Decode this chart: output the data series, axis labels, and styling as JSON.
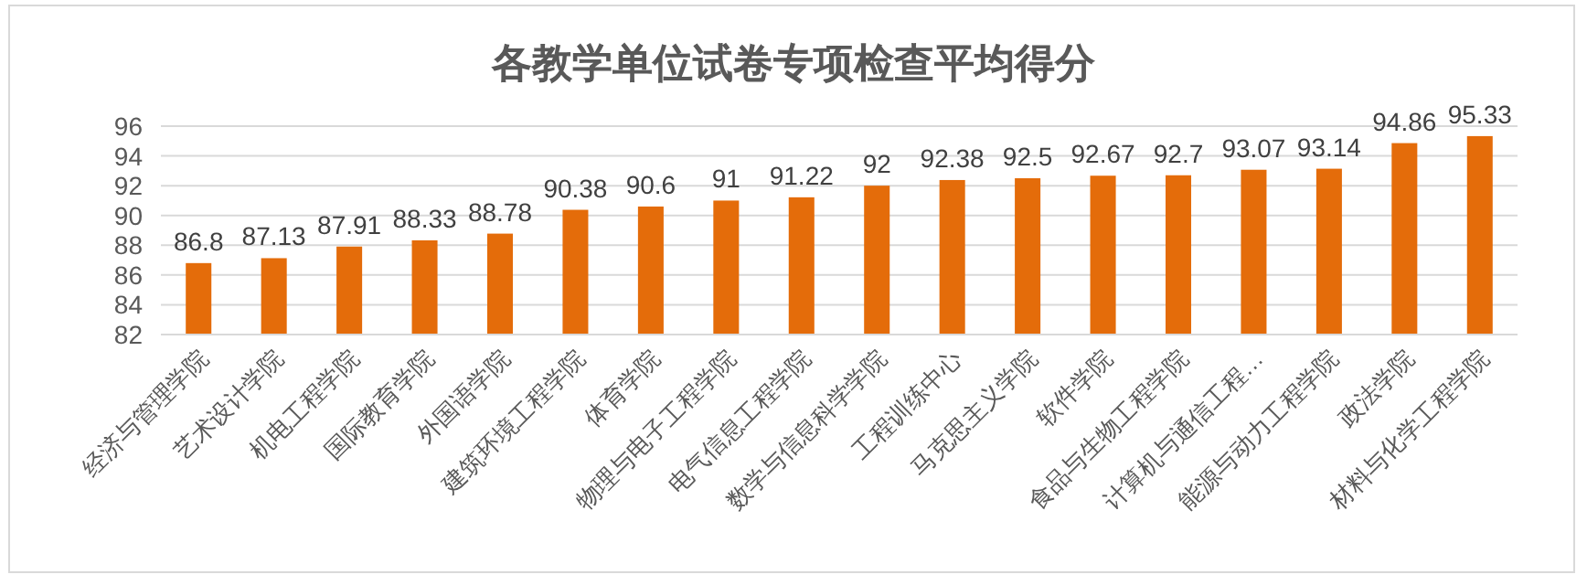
{
  "chart_data": {
    "type": "bar",
    "title": "各教学单位试卷专项检查平均得分",
    "categories": [
      "经济与管理学院",
      "艺术设计学院",
      "机电工程学院",
      "国际教育学院",
      "外国语学院",
      "建筑环境工程学院",
      "体育学院",
      "物理与电子工程学院",
      "电气信息工程学院",
      "数学与信息科学学院",
      "工程训练中心",
      "马克思主义学院",
      "软件学院",
      "食品与生物工程学院",
      "计算机与通信工程…",
      "能源与动力工程学院",
      "政法学院",
      "材料与化学工程学院"
    ],
    "values": [
      86.8,
      87.13,
      87.91,
      88.33,
      88.78,
      90.38,
      90.6,
      91,
      91.22,
      92,
      92.38,
      92.5,
      92.67,
      92.7,
      93.07,
      93.14,
      94.86,
      95.33
    ],
    "color": "#e46c0a",
    "ylim": [
      82,
      96
    ],
    "yticks": [
      82,
      84,
      86,
      88,
      90,
      92,
      94,
      96
    ],
    "grid": "y",
    "data_labels": true
  }
}
